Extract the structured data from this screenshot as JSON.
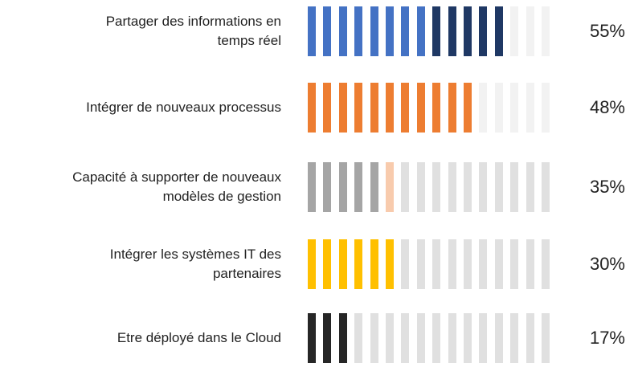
{
  "chart_data": {
    "type": "bar",
    "title": "",
    "xlabel": "",
    "ylabel": "",
    "ylim": [
      0,
      100
    ],
    "categories": [
      "Partager des informations en\ntemps réel",
      "Intégrer de nouveaux processus",
      "Capacité à supporter de nouveaux\nmodèles de gestion",
      "Intégrer les systèmes IT des\npartenaires",
      "Etre déployé dans le Cloud"
    ],
    "values": [
      55,
      48,
      35,
      30,
      17
    ],
    "value_labels": [
      "55%",
      "48%",
      "35%",
      "30%",
      "17%"
    ],
    "segments_total": 16,
    "rows": [
      {
        "filled_colors": [
          "#4472c4",
          "#4472c4",
          "#4472c4",
          "#4472c4",
          "#4472c4",
          "#4472c4",
          "#4472c4",
          "#4472c4",
          "#1f3864",
          "#1f3864",
          "#1f3864",
          "#1f3864",
          "#1f3864"
        ],
        "empty_color": "#f2f2f2"
      },
      {
        "filled_colors": [
          "#ed7d31",
          "#ed7d31",
          "#ed7d31",
          "#ed7d31",
          "#ed7d31",
          "#ed7d31",
          "#ed7d31",
          "#ed7d31",
          "#ed7d31",
          "#ed7d31",
          "#ed7d31"
        ],
        "empty_color": "#f2f2f2"
      },
      {
        "filled_colors": [
          "#a5a5a5",
          "#a5a5a5",
          "#a5a5a5",
          "#a5a5a5",
          "#a5a5a5",
          "#f8cbad"
        ],
        "empty_color": "#e0e0e0"
      },
      {
        "filled_colors": [
          "#ffc000",
          "#ffc000",
          "#ffc000",
          "#ffc000",
          "#ffc000",
          "#ffc000"
        ],
        "empty_color": "#e0e0e0"
      },
      {
        "filled_colors": [
          "#262626",
          "#262626",
          "#262626"
        ],
        "empty_color": "#e0e0e0"
      }
    ]
  }
}
